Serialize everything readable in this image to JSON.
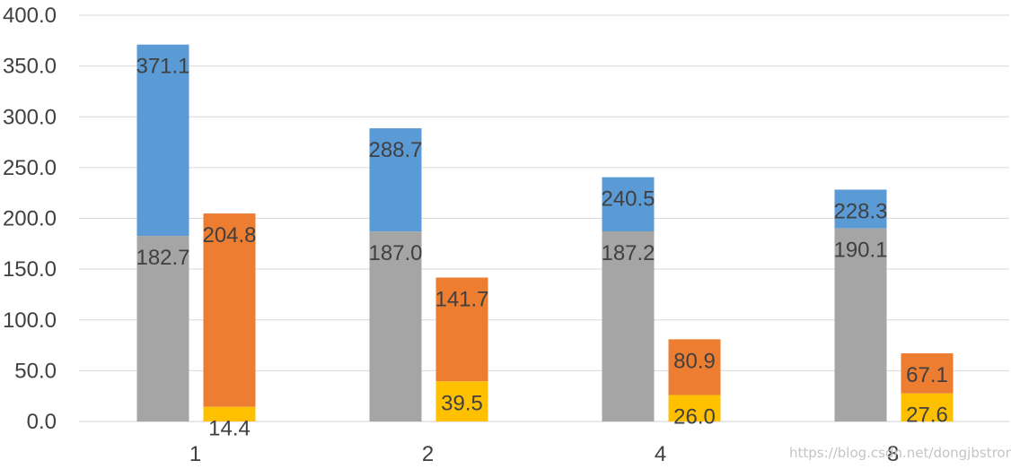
{
  "chart_data": {
    "type": "bar",
    "categories": [
      "1",
      "2",
      "4",
      "8"
    ],
    "ylim": [
      0,
      400
    ],
    "y_ticks": [
      "0.0",
      "50.0",
      "100.0",
      "150.0",
      "200.0",
      "250.0",
      "300.0",
      "350.0",
      "400.0"
    ],
    "grid": true,
    "stacks": [
      {
        "group": "left",
        "layers": [
          {
            "color": "#a5a5a5",
            "values": [
              182.7,
              187.0,
              187.2,
              190.1
            ],
            "labels": [
              "182.7",
              "187.0",
              "187.2",
              "190.1"
            ]
          },
          {
            "color": "#5b9bd5",
            "values": [
              371.1,
              288.7,
              240.5,
              228.3
            ],
            "labels": [
              "371.1",
              "288.7",
              "240.5",
              "228.3"
            ]
          }
        ]
      },
      {
        "group": "right",
        "layers": [
          {
            "color": "#ffc000",
            "values": [
              14.4,
              39.5,
              26.0,
              27.6
            ],
            "labels": [
              "14.4",
              "39.5",
              "26.0",
              "27.6"
            ]
          },
          {
            "color": "#ed7d31",
            "values": [
              204.8,
              141.7,
              80.9,
              67.1
            ],
            "labels": [
              "204.8",
              "141.7",
              "80.9",
              "67.1"
            ]
          }
        ]
      }
    ]
  },
  "watermark": "https://blog.csdn.net/dongjbstrong"
}
